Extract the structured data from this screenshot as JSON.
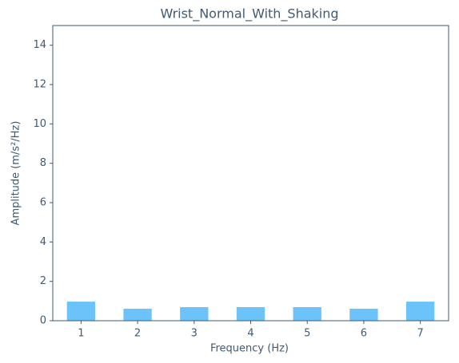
{
  "chart_data": {
    "type": "bar",
    "title": "Wrist_Normal_With_Shaking",
    "xlabel": "Frequency (Hz)",
    "ylabel": "Amplitude (m/s²/Hz)",
    "categories": [
      "1",
      "2",
      "3",
      "4",
      "5",
      "6",
      "7"
    ],
    "values": [
      0.97,
      0.61,
      0.69,
      0.69,
      0.69,
      0.61,
      0.97
    ],
    "color": "#6cc3fa",
    "ylim": [
      0,
      15
    ],
    "yticks": [
      0,
      2,
      4,
      6,
      8,
      10,
      12,
      14
    ],
    "grid": false
  }
}
